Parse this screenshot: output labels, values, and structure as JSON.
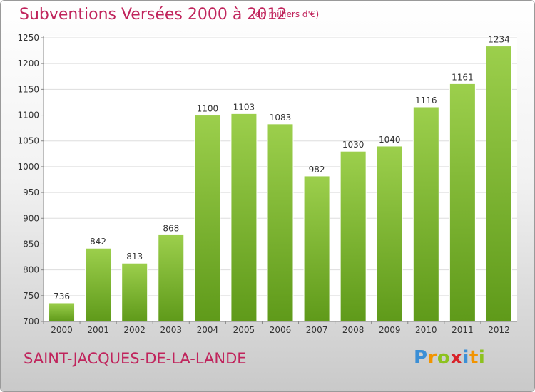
{
  "title": "Subventions Versées 2000 à 2012",
  "unit_note": "(en milliers d'€)",
  "commune": "SAINT-JACQUES-DE-LA-LANDE",
  "logo": {
    "letters": [
      "P",
      "r",
      "o",
      "x",
      "i",
      "t",
      "i"
    ],
    "colors": [
      "#3b8fd6",
      "#f29400",
      "#8dc21f",
      "#d8232a",
      "#3b8fd6",
      "#f29400",
      "#8dc21f"
    ]
  },
  "colors": {
    "bar_light": "#9ccf4c",
    "bar_dark": "#5f9a1a",
    "accent": "#c0245c"
  },
  "chart_data": {
    "type": "bar",
    "categories": [
      "2000",
      "2001",
      "2002",
      "2003",
      "2004",
      "2005",
      "2006",
      "2007",
      "2008",
      "2009",
      "2010",
      "2011",
      "2012"
    ],
    "values": [
      736,
      842,
      813,
      868,
      1100,
      1103,
      1083,
      982,
      1030,
      1040,
      1116,
      1161,
      1234
    ],
    "data_labels": [
      "736",
      "842",
      "813",
      "868",
      "1100",
      "1103",
      "1083",
      "982",
      "1030",
      "1040",
      "1116",
      "1161",
      "1234"
    ],
    "yticks": [
      700,
      750,
      800,
      850,
      900,
      950,
      1000,
      1050,
      1100,
      1150,
      1200,
      1250
    ],
    "ylim": [
      700,
      1250
    ],
    "grid": true
  }
}
